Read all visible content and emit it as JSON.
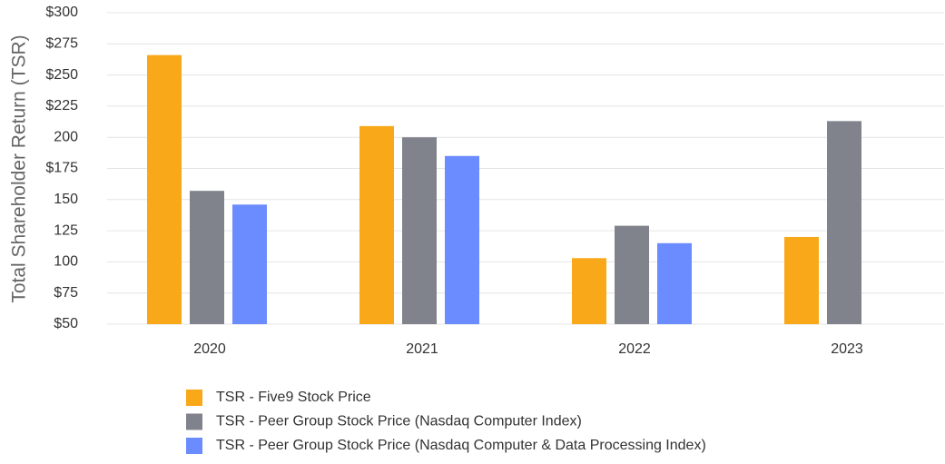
{
  "chart_data": {
    "type": "bar",
    "y_label": "Total Shareholder Return (TSR)",
    "categories": [
      "2020",
      "2021",
      "2022",
      "2023"
    ],
    "series": [
      {
        "name": "TSR - Five9 Stock Price",
        "color": "#f9a81a",
        "values": [
          266,
          209,
          103,
          120
        ]
      },
      {
        "name": "TSR - Peer Group Stock Price (Nasdaq Computer Index)",
        "color": "#80828c",
        "values": [
          157,
          200,
          129,
          213
        ]
      },
      {
        "name": "TSR - Peer Group Stock Price (Nasdaq Computer & Data Processing Index)",
        "color": "#6b8cff",
        "values": [
          146,
          185,
          115,
          null
        ]
      }
    ],
    "ylim": [
      50,
      300
    ],
    "yticks": [
      {
        "value": 50,
        "label": "$50"
      },
      {
        "value": 75,
        "label": "$75"
      },
      100,
      125,
      150,
      {
        "value": 175,
        "label": "$175"
      },
      200,
      {
        "value": 225,
        "label": "$225"
      },
      {
        "value": 250,
        "label": "$250"
      },
      {
        "value": 275,
        "label": "$275"
      },
      {
        "value": 300,
        "label": "$300"
      }
    ],
    "grid": true,
    "legend": "bottom"
  }
}
